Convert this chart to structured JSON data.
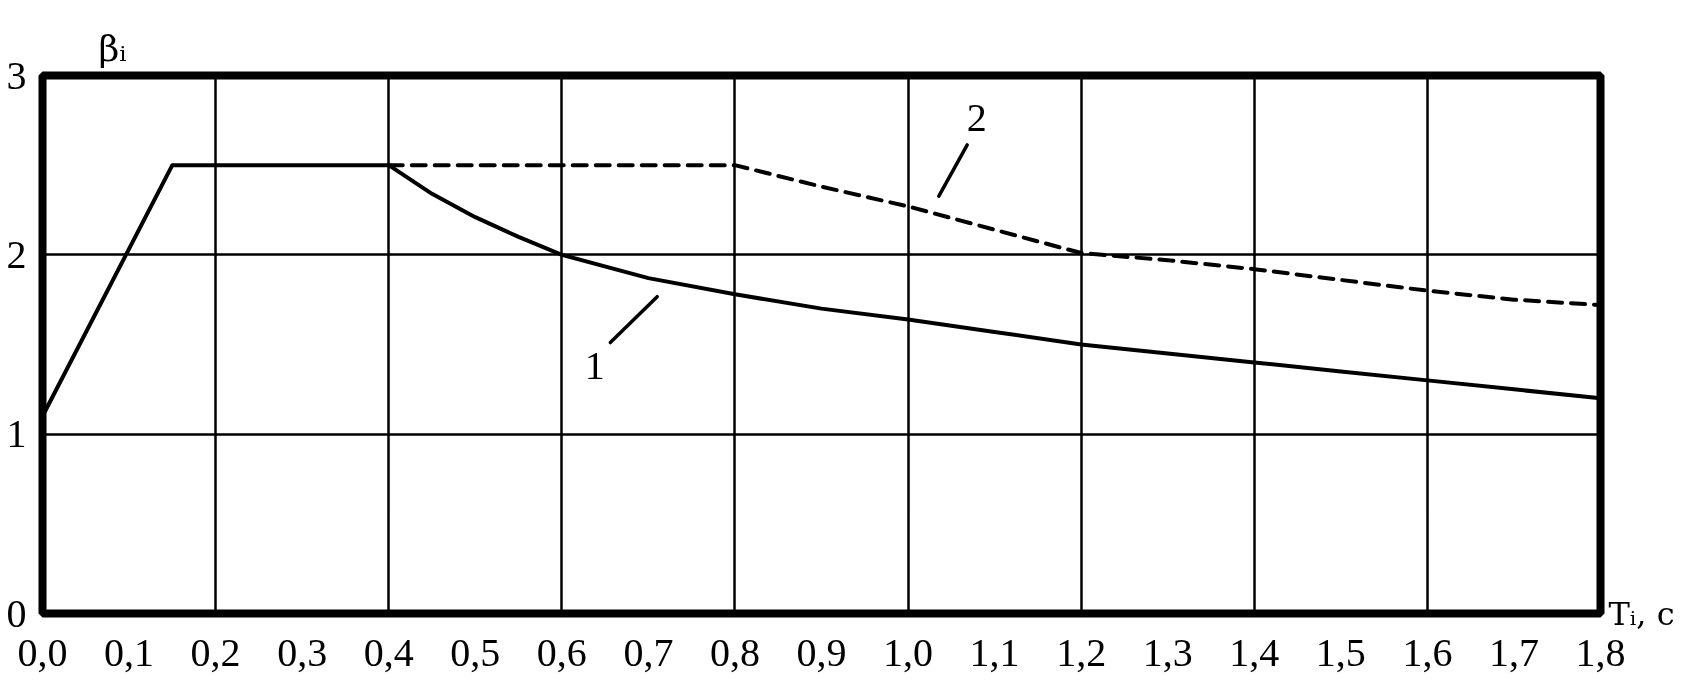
{
  "chart_data": {
    "type": "line",
    "xlabel": "Tᵢ, с",
    "ylabel": "βᵢ",
    "x": [
      0,
      0.15,
      0.4,
      0.45,
      0.5,
      0.55,
      0.6,
      0.7,
      0.8,
      0.9,
      1.0,
      1.1,
      1.2,
      1.3,
      1.4,
      1.5,
      1.6,
      1.7,
      1.8
    ],
    "series": [
      {
        "name": "1",
        "color": "#000000",
        "line_style": "solid",
        "values": [
          1.1,
          2.5,
          2.5,
          2.34,
          2.21,
          2.1,
          2.0,
          1.87,
          1.78,
          1.7,
          1.64,
          1.57,
          1.5,
          1.45,
          1.4,
          1.35,
          1.3,
          1.25,
          1.2
        ]
      },
      {
        "name": "2",
        "color": "#000000",
        "line_style": "dashed",
        "x": [
          0.4,
          0.8,
          0.9,
          1.0,
          1.1,
          1.2,
          1.3,
          1.4,
          1.5,
          1.6,
          1.7,
          1.8
        ],
        "values": [
          2.5,
          2.5,
          2.38,
          2.27,
          2.14,
          2.01,
          1.97,
          1.92,
          1.86,
          1.8,
          1.75,
          1.72
        ]
      }
    ],
    "xlim": [
      0,
      1.8
    ],
    "ylim": [
      0,
      3
    ],
    "xticks": [
      {
        "value": 0,
        "label": "0,0"
      },
      {
        "value": 0.1,
        "label": "0,1"
      },
      {
        "value": 0.2,
        "label": "0,2"
      },
      {
        "value": 0.3,
        "label": "0,3"
      },
      {
        "value": 0.4,
        "label": "0,4"
      },
      {
        "value": 0.5,
        "label": "0,5"
      },
      {
        "value": 0.6,
        "label": "0,6"
      },
      {
        "value": 0.7,
        "label": "0,7"
      },
      {
        "value": 0.8,
        "label": "0,8"
      },
      {
        "value": 0.9,
        "label": "0,9"
      },
      {
        "value": 1.0,
        "label": "1,0"
      },
      {
        "value": 1.1,
        "label": "1,1"
      },
      {
        "value": 1.2,
        "label": "1,2"
      },
      {
        "value": 1.3,
        "label": "1,3"
      },
      {
        "value": 1.4,
        "label": "1,4"
      },
      {
        "value": 1.5,
        "label": "1,5"
      },
      {
        "value": 1.6,
        "label": "1,6"
      },
      {
        "value": 1.7,
        "label": "1,7"
      },
      {
        "value": 1.8,
        "label": "1,8"
      }
    ],
    "yticks": [
      0,
      1,
      2,
      3
    ],
    "grid": true
  }
}
